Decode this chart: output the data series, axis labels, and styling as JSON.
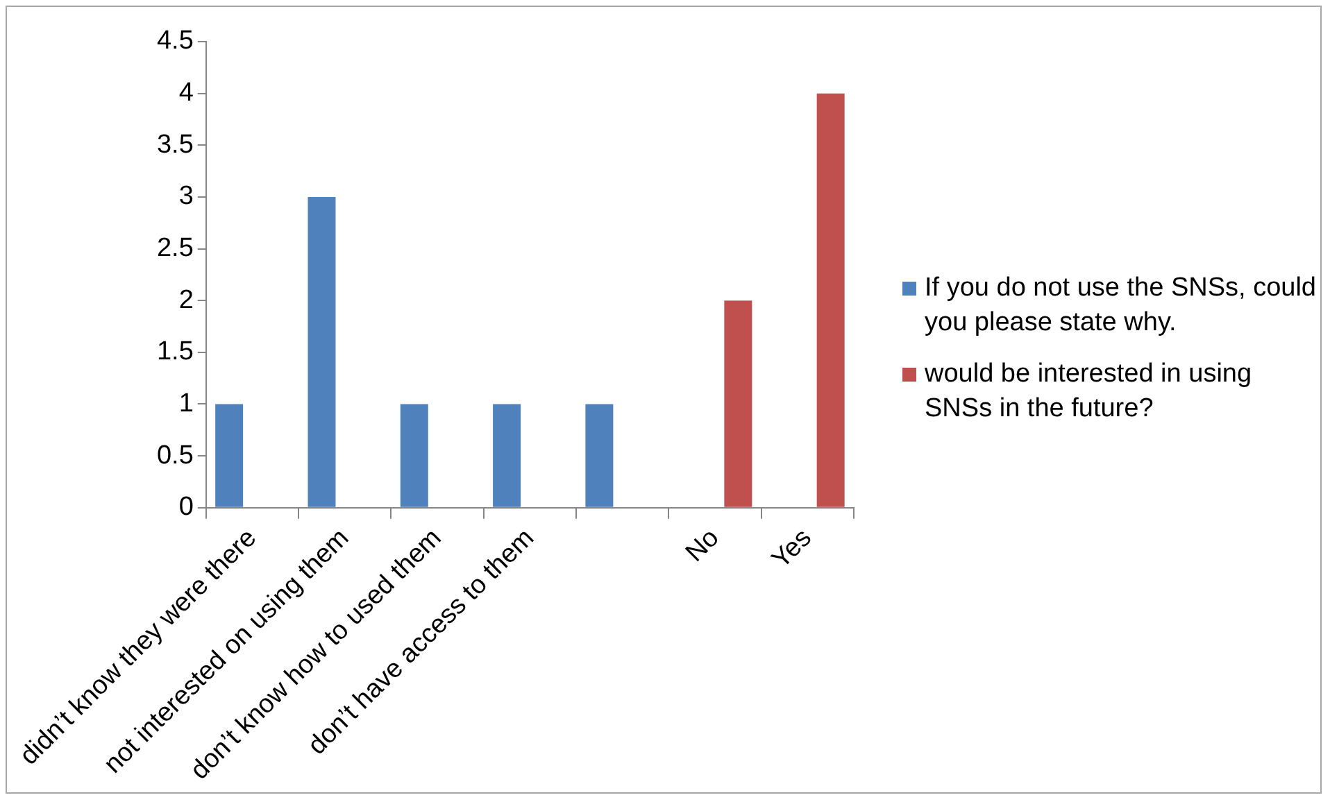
{
  "chart_data": {
    "type": "bar",
    "categories": [
      "didn’t know they were there",
      "not interested on using them",
      "don’t know how to used them",
      "don’t have access to them",
      null,
      "No",
      "Yes"
    ],
    "series": [
      {
        "name": "If you do not use the SNSs, could you please state why.",
        "color": "#4f81bd",
        "values": [
          1,
          3,
          1,
          1,
          1,
          null,
          null
        ]
      },
      {
        "name": "would be interested in using SNSs in the future?",
        "color": "#c0504d",
        "values": [
          null,
          null,
          null,
          null,
          null,
          2,
          4
        ]
      }
    ],
    "ylim": [
      0,
      4.5
    ],
    "yticks": [
      0,
      0.5,
      1,
      1.5,
      2,
      2.5,
      3,
      3.5,
      4,
      4.5
    ],
    "legend": "right"
  }
}
